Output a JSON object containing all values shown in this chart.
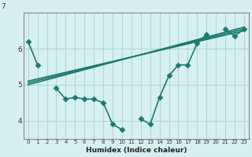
{
  "xlabel": "Humidex (Indice chaleur)",
  "ylabel": "",
  "bg_color": "#d6f0ef",
  "grid_color": "#b0d8d5",
  "line_color": "#1a7a6e",
  "line_color2": "#1a7a6e",
  "xlim": [
    -0.5,
    23.5
  ],
  "ylim": [
    3.5,
    7.0
  ],
  "yticks": [
    4,
    5,
    6
  ],
  "xticks": [
    0,
    1,
    2,
    3,
    4,
    5,
    6,
    7,
    8,
    9,
    10,
    11,
    12,
    13,
    14,
    15,
    16,
    17,
    18,
    19,
    20,
    21,
    22,
    23
  ],
  "series1_x": [
    0,
    1,
    2,
    3,
    4,
    5,
    6,
    7,
    8,
    9,
    10,
    11,
    12,
    13,
    14,
    15,
    16,
    17,
    18,
    19,
    20,
    21,
    22,
    23
  ],
  "series1_y": [
    6.2,
    5.55,
    null,
    4.9,
    4.6,
    4.65,
    4.6,
    4.6,
    4.5,
    3.9,
    3.75,
    null,
    4.05,
    3.9,
    4.65,
    5.25,
    5.55,
    5.55,
    6.15,
    6.4,
    null,
    6.55,
    6.35,
    6.55
  ],
  "reg_line1_x": [
    0,
    23
  ],
  "reg_line1_y": [
    5.0,
    6.6
  ],
  "reg_line2_x": [
    0,
    23
  ],
  "reg_line2_y": [
    5.05,
    6.55
  ],
  "reg_line3_x": [
    0,
    23
  ],
  "reg_line3_y": [
    5.1,
    6.5
  ],
  "marker": "D",
  "markersize": 3.5,
  "linewidth": 1.2
}
